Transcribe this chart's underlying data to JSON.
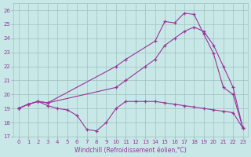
{
  "xlabel": "Windchill (Refroidissement éolien,°C)",
  "bg_color": "#c8e8e8",
  "grid_color": "#a0c0c0",
  "line_color": "#993399",
  "xlim": [
    -0.5,
    23.5
  ],
  "ylim": [
    17,
    26.5
  ],
  "yticks": [
    17,
    18,
    19,
    20,
    21,
    22,
    23,
    24,
    25,
    26
  ],
  "xticks": [
    0,
    1,
    2,
    3,
    4,
    5,
    6,
    7,
    8,
    9,
    10,
    11,
    12,
    13,
    14,
    15,
    16,
    17,
    18,
    19,
    20,
    21,
    22,
    23
  ],
  "series": [
    {
      "x": [
        0,
        1,
        2,
        3,
        10,
        11,
        14,
        15,
        16,
        17,
        18,
        19,
        20,
        21,
        22,
        23
      ],
      "y": [
        19,
        19.3,
        19.5,
        19.4,
        22.0,
        22.5,
        23.8,
        25.2,
        25.1,
        25.8,
        25.7,
        24.3,
        22.9,
        20.5,
        20.0,
        17.6
      ]
    },
    {
      "x": [
        0,
        1,
        2,
        3,
        10,
        11,
        13,
        14,
        15,
        16,
        17,
        18,
        19,
        20,
        21,
        22,
        23
      ],
      "y": [
        19,
        19.3,
        19.5,
        19.4,
        20.5,
        21.0,
        22.0,
        22.5,
        23.5,
        24.0,
        24.5,
        24.8,
        24.5,
        23.5,
        22.0,
        20.5,
        17.6
      ]
    },
    {
      "x": [
        0,
        1,
        2,
        3,
        4,
        5,
        6,
        7,
        8,
        9,
        10,
        11,
        12,
        13,
        14,
        15,
        16,
        17,
        18,
        19,
        20,
        21,
        22,
        23
      ],
      "y": [
        19,
        19.3,
        19.5,
        19.2,
        19.0,
        18.9,
        18.5,
        17.5,
        17.4,
        18.0,
        19.0,
        19.5,
        19.5,
        19.5,
        19.5,
        19.4,
        19.3,
        19.2,
        19.1,
        19.0,
        18.9,
        18.8,
        18.7,
        17.6
      ]
    }
  ]
}
